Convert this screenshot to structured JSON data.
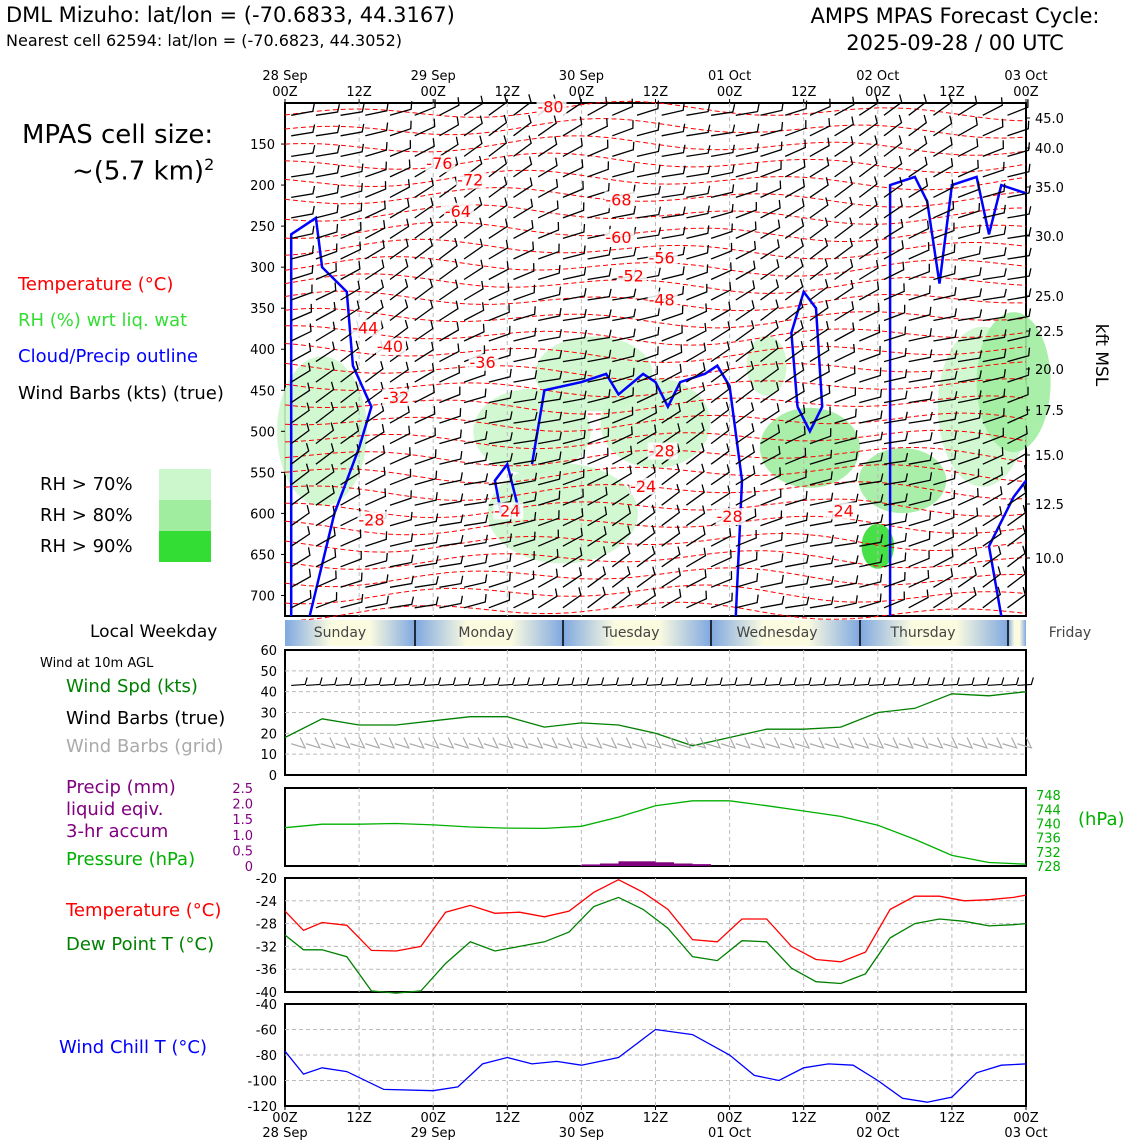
{
  "header": {
    "station_line": "DML Mizuho: lat/lon = (-70.6833, 44.3167)",
    "cell_line": "Nearest cell 62594: lat/lon = (-70.6823, 44.3052)",
    "cycle_line1": "AMPS MPAS Forecast Cycle:",
    "cycle_line2": "2025-09-28 / 00 UTC"
  },
  "cell_size": {
    "line1": "MPAS cell size:",
    "line2": "~(5.7 km)",
    "sup": "2"
  },
  "legend": {
    "temperature": "Temperature (°C)",
    "rh": "RH (%) wrt liq. wat",
    "cloud": "Cloud/Precip outline",
    "wind": "Wind Barbs (kts) (true)",
    "rh70": "RH > 70%",
    "rh80": "RH > 80%",
    "rh90": "RH > 90%",
    "colors": {
      "temperature": "#ff0000",
      "rh": "#33dd33",
      "cloud": "#0000ff",
      "rh70": "#ccf7cc",
      "rh80": "#a0eda0",
      "rh90": "#33dd33"
    }
  },
  "top_axis": {
    "ticks": [
      {
        "l1": "28 Sep",
        "l2": "00Z"
      },
      {
        "l1": "",
        "l2": "12Z"
      },
      {
        "l1": "29 Sep",
        "l2": "00Z"
      },
      {
        "l1": "",
        "l2": "12Z"
      },
      {
        "l1": "30 Sep",
        "l2": "00Z"
      },
      {
        "l1": "",
        "l2": "12Z"
      },
      {
        "l1": "01 Oct",
        "l2": "00Z"
      },
      {
        "l1": "",
        "l2": "12Z"
      },
      {
        "l1": "02 Oct",
        "l2": "00Z"
      },
      {
        "l1": "",
        "l2": "12Z"
      },
      {
        "l1": "03 Oct",
        "l2": "00Z"
      }
    ]
  },
  "weekday": {
    "label": "Local Weekday",
    "days": [
      "Sunday",
      "Monday",
      "Tuesday",
      "Wednesday",
      "Thursday",
      "Friday"
    ]
  },
  "bottom_axis": {
    "ticks": [
      {
        "l1": "00Z",
        "l2": "28 Sep"
      },
      {
        "l1": "12Z",
        "l2": ""
      },
      {
        "l1": "00Z",
        "l2": "29 Sep"
      },
      {
        "l1": "12Z",
        "l2": ""
      },
      {
        "l1": "00Z",
        "l2": "30 Sep"
      },
      {
        "l1": "12Z",
        "l2": ""
      },
      {
        "l1": "00Z",
        "l2": "01 Oct"
      },
      {
        "l1": "12Z",
        "l2": ""
      },
      {
        "l1": "00Z",
        "l2": "02 Oct"
      },
      {
        "l1": "12Z",
        "l2": ""
      },
      {
        "l1": "00Z",
        "l2": "03 Oct"
      }
    ]
  },
  "panels": {
    "wind": {
      "title": "Wind at 10m AGL",
      "l1": "Wind Spd (kts)",
      "l2": "Wind Barbs (true)",
      "l3": "Wind Barbs (grid)"
    },
    "precip": {
      "l1": "Precip (mm)",
      "l2": "liquid eqiv.",
      "l3": "3-hr accum",
      "l4": "Pressure (hPa)",
      "unit": "(hPa)"
    },
    "temp": {
      "l1": "Temperature (°C)",
      "l2": "Dew Point T (°C)"
    },
    "chill": {
      "l1": "Wind Chill T (°C)"
    }
  },
  "chart_data": [
    {
      "type": "line",
      "name": "time-height section",
      "y_left_label_values": [
        "150",
        "200",
        "250",
        "300",
        "350",
        "400",
        "450",
        "500",
        "550",
        "600",
        "650",
        "700"
      ],
      "y_right_label_values": [
        "45.0",
        "40.0",
        "35.0",
        "30.0",
        "25.0",
        "22.5",
        "20.0",
        "17.5",
        "15.0",
        "12.5",
        "10.0"
      ],
      "y_right_title": "kft MSL",
      "temperature_labels": [
        {
          "text": "-80",
          "t": 43,
          "p": 108
        },
        {
          "text": "-76",
          "t": 25,
          "p": 177
        },
        {
          "text": "-72",
          "t": 30,
          "p": 197
        },
        {
          "text": "-64",
          "t": 28,
          "p": 235
        },
        {
          "text": "-68",
          "t": 54,
          "p": 221
        },
        {
          "text": "-60",
          "t": 54,
          "p": 267
        },
        {
          "text": "-56",
          "t": 61,
          "p": 292
        },
        {
          "text": "-52",
          "t": 56,
          "p": 314
        },
        {
          "text": "-48",
          "t": 61,
          "p": 343
        },
        {
          "text": "-44",
          "t": 13,
          "p": 377
        },
        {
          "text": "-40",
          "t": 17,
          "p": 400
        },
        {
          "text": "-36",
          "t": 32,
          "p": 419
        },
        {
          "text": "-32",
          "t": 18,
          "p": 462
        },
        {
          "text": "-28",
          "t": 61,
          "p": 527
        },
        {
          "text": "-24",
          "t": 58,
          "p": 570
        },
        {
          "text": "-24",
          "t": 36,
          "p": 600
        },
        {
          "text": "-28",
          "t": 14,
          "p": 611
        },
        {
          "text": "-28",
          "t": 72,
          "p": 607
        },
        {
          "text": "-24",
          "t": 90,
          "p": 600
        }
      ]
    },
    {
      "type": "line",
      "name": "wind speed",
      "x_hours": [
        0,
        6,
        12,
        18,
        24,
        30,
        36,
        42,
        48,
        54,
        60,
        66,
        72,
        78,
        84,
        90,
        96,
        102,
        108,
        114,
        120
      ],
      "y_ticks": [
        0,
        10,
        20,
        30,
        40,
        50,
        60
      ],
      "ylim": [
        0,
        60
      ],
      "series": [
        {
          "name": "Wind Spd (kts)",
          "color": "#008000",
          "values": [
            18,
            27,
            24,
            24,
            26,
            28,
            28,
            23,
            25,
            24,
            20,
            14,
            18,
            22,
            22,
            23,
            30,
            32,
            39,
            38,
            40
          ]
        }
      ]
    },
    {
      "type": "line",
      "name": "precip and pressure",
      "y_left_ticks": [
        "0",
        "0.5",
        "1.0",
        "1.5",
        "2.0",
        "2.5"
      ],
      "y_right_ticks": [
        "728",
        "732",
        "736",
        "740",
        "744",
        "748"
      ],
      "ylim_left": [
        0,
        2.5
      ],
      "ylim_right": [
        728,
        750
      ],
      "precip_bars": [
        {
          "start": 48,
          "end": 51,
          "v": 0.05
        },
        {
          "start": 51,
          "end": 54,
          "v": 0.08
        },
        {
          "start": 54,
          "end": 57,
          "v": 0.15
        },
        {
          "start": 57,
          "end": 60,
          "v": 0.15
        },
        {
          "start": 60,
          "end": 63,
          "v": 0.12
        },
        {
          "start": 63,
          "end": 66,
          "v": 0.08
        },
        {
          "start": 66,
          "end": 69,
          "v": 0.06
        }
      ],
      "series": [
        {
          "name": "Pressure (hPa)",
          "color": "#00b000",
          "x_hours": [
            0,
            6,
            12,
            18,
            24,
            30,
            36,
            42,
            48,
            54,
            60,
            66,
            72,
            78,
            84,
            90,
            96,
            102,
            108,
            114,
            120
          ],
          "values": [
            738.8,
            739.8,
            739.8,
            740.0,
            739.6,
            739.0,
            738.7,
            738.6,
            739.2,
            741.8,
            745.0,
            746.4,
            746.4,
            745.0,
            743.5,
            742.0,
            739.5,
            735.5,
            731.0,
            729.0,
            728.5
          ]
        }
      ]
    },
    {
      "type": "line",
      "name": "temperature and dew point",
      "x_hours": [
        0,
        3,
        6,
        10,
        14,
        18,
        22,
        26,
        30,
        34,
        38,
        42,
        46,
        50,
        54,
        58,
        62,
        66,
        70,
        74,
        78,
        82,
        86,
        90,
        94,
        98,
        102,
        106,
        110,
        114,
        118,
        120
      ],
      "y_ticks": [
        -20,
        -24,
        -28,
        -32,
        -36,
        -40
      ],
      "ylim": [
        -40,
        -20
      ],
      "series": [
        {
          "name": "Temperature (°C)",
          "color": "#ff0000",
          "values": [
            -25.8,
            -29.2,
            -27.8,
            -28.3,
            -32.7,
            -32.8,
            -32.0,
            -26.0,
            -24.8,
            -26.2,
            -26.0,
            -26.8,
            -25.8,
            -22.5,
            -20.3,
            -22.5,
            -25.5,
            -30.8,
            -31.2,
            -27.2,
            -27.2,
            -32.0,
            -34.3,
            -34.7,
            -33.0,
            -25.5,
            -23.2,
            -23.2,
            -24.0,
            -23.8,
            -23.4,
            -23.0
          ]
        },
        {
          "name": "Dew Point T (°C)",
          "color": "#008000",
          "values": [
            -30.0,
            -32.6,
            -32.6,
            -33.8,
            -39.8,
            -40.2,
            -39.8,
            -35.0,
            -31.2,
            -32.8,
            -32.0,
            -31.2,
            -29.5,
            -25.0,
            -23.4,
            -25.5,
            -28.8,
            -33.8,
            -34.5,
            -31.0,
            -31.2,
            -35.8,
            -38.2,
            -38.5,
            -36.8,
            -30.5,
            -28.0,
            -27.2,
            -27.6,
            -28.4,
            -28.2,
            -28.0
          ]
        }
      ]
    },
    {
      "type": "line",
      "name": "wind chill",
      "x_hours": [
        0,
        3,
        6,
        10,
        16,
        24,
        28,
        32,
        36,
        40,
        44,
        48,
        54,
        60,
        66,
        72,
        76,
        80,
        84,
        88,
        92,
        96,
        100,
        104,
        108,
        112,
        116,
        120
      ],
      "y_ticks": [
        -40,
        -60,
        -80,
        -100,
        -120
      ],
      "ylim": [
        -120,
        -40
      ],
      "series": [
        {
          "name": "Wind Chill T (°C)",
          "color": "#0000ff",
          "values": [
            -77,
            -95,
            -90,
            -93,
            -107,
            -108,
            -105,
            -87,
            -82,
            -87,
            -85,
            -88,
            -82,
            -60,
            -64,
            -80,
            -96,
            -100,
            -90,
            -87,
            -88,
            -100,
            -114,
            -117,
            -113,
            -94,
            -88,
            -87
          ]
        }
      ]
    }
  ]
}
